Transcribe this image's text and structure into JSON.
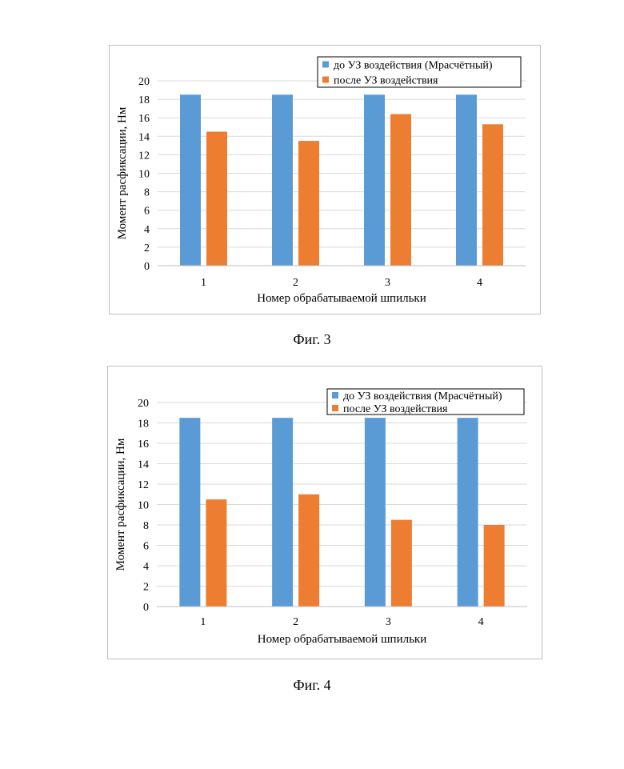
{
  "charts": [
    {
      "caption": "Фиг. 3",
      "chart_data": {
        "type": "bar",
        "categories": [
          "1",
          "2",
          "3",
          "4"
        ],
        "series": [
          {
            "name": "до УЗ воздействия (Mрасчётный)",
            "color": "#5b9bd5",
            "values": [
              18.5,
              18.5,
              18.5,
              18.5
            ]
          },
          {
            "name": "после УЗ воздействия",
            "color": "#ed7d31",
            "values": [
              14.5,
              13.5,
              16.4,
              15.3
            ]
          }
        ],
        "xlabel": "Номер обрабатываемой шпильки",
        "ylabel": "Момент расфиксации, Нм",
        "ylim": [
          0,
          20
        ],
        "yticks": [
          "0",
          "2",
          "4",
          "6",
          "8",
          "10",
          "12",
          "14",
          "16",
          "18",
          "20"
        ],
        "grid": true,
        "legend": "top-right"
      }
    },
    {
      "caption": "Фиг. 4",
      "chart_data": {
        "type": "bar",
        "categories": [
          "1",
          "2",
          "3",
          "4"
        ],
        "series": [
          {
            "name": "до УЗ воздействия (Mрасчётный)",
            "color": "#5b9bd5",
            "values": [
              18.5,
              18.5,
              18.5,
              18.5
            ]
          },
          {
            "name": "после УЗ воздействия",
            "color": "#ed7d31",
            "values": [
              10.5,
              11.0,
              8.5,
              8.0
            ]
          }
        ],
        "xlabel": "Номер обрабатываемой шпильки",
        "ylabel": "Момент расфиксации, Нм",
        "ylim": [
          0,
          20
        ],
        "yticks": [
          "0",
          "2",
          "4",
          "6",
          "8",
          "10",
          "12",
          "14",
          "16",
          "18",
          "20"
        ],
        "grid": true,
        "legend": "top-right"
      }
    }
  ]
}
